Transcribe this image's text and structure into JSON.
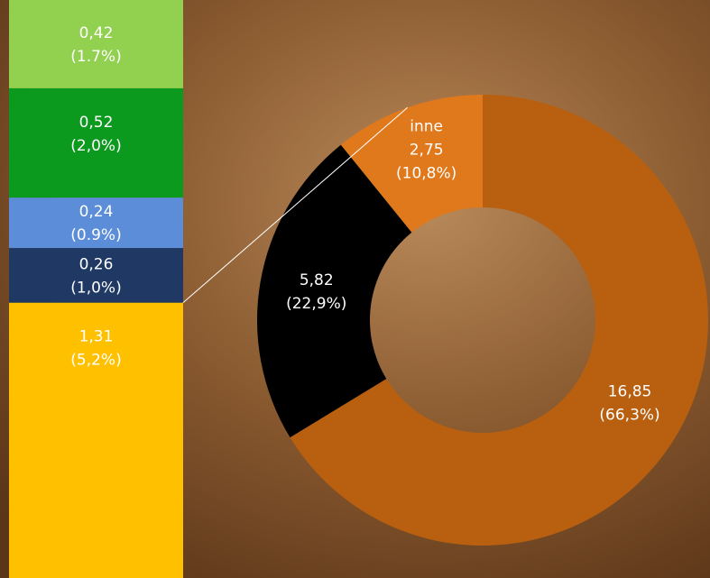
{
  "chart_data": {
    "type": "bar-of-pie",
    "pie": {
      "categories": [
        null,
        null,
        "inne"
      ],
      "values": [
        16.85,
        5.82,
        2.75
      ],
      "value_labels": [
        "16,85",
        "5,82",
        "2,75"
      ],
      "percents": [
        66.3,
        22.9,
        10.8
      ],
      "percent_labels": [
        "(66,3%)",
        "(22,9%)",
        "(10,8%)"
      ],
      "colors": [
        "#b8600f",
        "#000000",
        "#e0781c"
      ]
    },
    "bar": {
      "values": [
        1.31,
        0.26,
        0.24,
        0.52,
        0.42
      ],
      "value_labels": [
        "1,31",
        "0,26",
        "0,24",
        "0,52",
        "0,42"
      ],
      "percents": [
        5.2,
        1.0,
        0.9,
        2.0,
        1.7
      ],
      "percent_labels": [
        "(5,2%)",
        "(1,0%)",
        "(0.9%)",
        "(2,0%)",
        "(1.7%)"
      ],
      "colors": [
        "#ffc000",
        "#1f3864",
        "#5b8dd9",
        "#0c9a1e",
        "#92d050"
      ]
    }
  }
}
